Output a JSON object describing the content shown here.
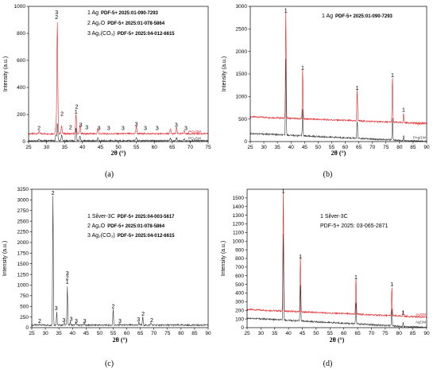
{
  "chart_data": [
    {
      "panel": "a",
      "type": "line",
      "caption": "(a)",
      "xlabel": "2θ (°)",
      "ylabel": "Intensity (a.u.)",
      "xlim": [
        25,
        75
      ],
      "ylim": [
        0,
        1000
      ],
      "xticks": [
        25,
        30,
        35,
        40,
        45,
        50,
        55,
        60,
        65,
        70,
        75
      ],
      "yticks": [
        0,
        200,
        400,
        600,
        800,
        1000
      ],
      "legend_lines": [
        {
          "num": "1",
          "name": "Ag",
          "ref": "PDF-5+ 2025:01-090-7293"
        },
        {
          "num": "2",
          "name": "Ag₂O",
          "ref": "PDF-5+ 2025:01-078-5864"
        },
        {
          "num": "3",
          "name": "Ag₂(CO₃)",
          "ref": "PDF-5+ 2025:04-012-6615"
        }
      ],
      "series": [
        {
          "name": "PO₂/2M",
          "color": "#e8262a",
          "offset": 50,
          "baseline": 8,
          "peaks": [
            [
              27.9,
              16
            ],
            [
              32.6,
              70
            ],
            [
              33.0,
              820
            ],
            [
              34.2,
              60
            ],
            [
              38.2,
              150
            ],
            [
              39.3,
              60
            ],
            [
              44.3,
              40
            ],
            [
              55.0,
              60
            ],
            [
              64.5,
              35
            ],
            [
              66.2,
              45
            ],
            [
              68.3,
              25
            ],
            [
              77.4,
              20
            ]
          ]
        },
        {
          "name": "PO₂/1M",
          "color": "#3a3a3a",
          "offset": 0,
          "baseline": 6,
          "peaks": [
            [
              27.9,
              10
            ],
            [
              32.6,
              40
            ],
            [
              33.0,
              130
            ],
            [
              34.2,
              40
            ],
            [
              38.2,
              100
            ],
            [
              39.3,
              30
            ],
            [
              44.3,
              20
            ],
            [
              55.0,
              25
            ],
            [
              64.5,
              20
            ],
            [
              66.2,
              22
            ],
            [
              68.3,
              15
            ]
          ]
        }
      ],
      "peak_labels": [
        {
          "x": 27.9,
          "y": 85,
          "text": "2"
        },
        {
          "x": 32.8,
          "y": 905,
          "text": "2"
        },
        {
          "x": 32.8,
          "y": 940,
          "text": "3"
        },
        {
          "x": 34.3,
          "y": 190,
          "text": "2"
        },
        {
          "x": 36.7,
          "y": 90,
          "text": "2"
        },
        {
          "x": 38.2,
          "y": 205,
          "text": "1"
        },
        {
          "x": 38.4,
          "y": 245,
          "text": "2"
        },
        {
          "x": 39.5,
          "y": 110,
          "text": "3"
        },
        {
          "x": 41.2,
          "y": 90,
          "text": "3"
        },
        {
          "x": 44.6,
          "y": 85,
          "text": "3"
        },
        {
          "x": 47.3,
          "y": 85,
          "text": "3"
        },
        {
          "x": 51.3,
          "y": 85,
          "text": "3"
        },
        {
          "x": 55.0,
          "y": 115,
          "text": "3"
        },
        {
          "x": 57.5,
          "y": 85,
          "text": "3"
        },
        {
          "x": 60.8,
          "y": 85,
          "text": "3"
        },
        {
          "x": 66.1,
          "y": 110,
          "text": "3"
        },
        {
          "x": 68.8,
          "y": 85,
          "text": "3"
        }
      ],
      "series_label_positions": [
        {
          "x": 69.5,
          "y": 65
        },
        {
          "x": 69.5,
          "y": 15
        }
      ]
    },
    {
      "panel": "b",
      "type": "line",
      "caption": "(b)",
      "xlabel": "2θ (°)",
      "ylabel": "Intensity (a.u.)",
      "xlim": [
        25,
        90
      ],
      "ylim": [
        0,
        3000
      ],
      "xticks": [
        25,
        30,
        35,
        40,
        45,
        50,
        55,
        60,
        65,
        70,
        75,
        80,
        85,
        90
      ],
      "yticks": [
        0,
        500,
        1000,
        1500,
        2000,
        2500,
        3000
      ],
      "legend_lines": [
        {
          "num": "1",
          "name": "Ag",
          "ref": "PDF-5+ 2025:01-090-7293"
        }
      ],
      "series": [
        {
          "name": "PAg/2M",
          "color": "#e8262a",
          "offset": 400,
          "baseline_slope": [
            150,
            0
          ],
          "peaks": [
            [
              38.1,
              2400
            ],
            [
              44.3,
              1100
            ],
            [
              64.4,
              700
            ],
            [
              77.4,
              1000
            ],
            [
              81.5,
              200
            ]
          ]
        },
        {
          "name": "PAg/1M",
          "color": "#3a3a3a",
          "offset": 0,
          "baseline_slope": [
            180,
            0
          ],
          "peaks": [
            [
              38.1,
              1700
            ],
            [
              44.3,
              600
            ],
            [
              64.4,
              400
            ],
            [
              77.4,
              500
            ],
            [
              81.5,
              100
            ]
          ]
        }
      ],
      "peak_labels": [
        {
          "x": 38.1,
          "y": 2870,
          "text": "1"
        },
        {
          "x": 44.3,
          "y": 1600,
          "text": "1"
        },
        {
          "x": 64.4,
          "y": 1150,
          "text": "1"
        },
        {
          "x": 77.4,
          "y": 1430,
          "text": "1"
        },
        {
          "x": 81.5,
          "y": 660,
          "text": "1"
        }
      ],
      "series_label_positions": [
        {
          "x": 85,
          "y": 380
        },
        {
          "x": 85,
          "y": 60
        }
      ]
    },
    {
      "panel": "c",
      "type": "line",
      "caption": "(c)",
      "xlabel": "2θ (°)",
      "ylabel": "Intensity (a.u.)",
      "xlim": [
        25,
        90
      ],
      "ylim": [
        0,
        3250
      ],
      "xticks": [
        25,
        30,
        35,
        40,
        45,
        50,
        55,
        60,
        65,
        70,
        75,
        80,
        85,
        90
      ],
      "yticks": [
        0,
        250,
        500,
        750,
        1000,
        1250,
        1500,
        1750,
        2000,
        2250,
        2500,
        2750,
        3000,
        3250
      ],
      "legend_lines": [
        {
          "num": "1",
          "name": "Silver-3C",
          "ref": "PDF-5+ 2025:04-003-5617"
        },
        {
          "num": "2",
          "name": "Ag₂O",
          "ref": "PDF-5+ 2025:01-078-5864"
        },
        {
          "num": "3",
          "name": "Ag₂(CO₃)",
          "ref": "PDF-5+ 2025:04-012-6615"
        }
      ],
      "series": [
        {
          "name": "",
          "color": "#3a3a3a",
          "offset": 0,
          "baseline": 60,
          "peaks": [
            [
              27.9,
              40
            ],
            [
              32.8,
              3050
            ],
            [
              34.2,
              320
            ],
            [
              37.0,
              60
            ],
            [
              38.1,
              900
            ],
            [
              39.2,
              80
            ],
            [
              41.3,
              60
            ],
            [
              44.3,
              50
            ],
            [
              55.0,
              370
            ],
            [
              57.5,
              30
            ],
            [
              64.5,
              80
            ],
            [
              65.9,
              200
            ],
            [
              68.9,
              60
            ]
          ]
        }
      ],
      "peak_labels": [
        {
          "x": 27.9,
          "y": 110,
          "text": "2"
        },
        {
          "x": 32.8,
          "y": 3120,
          "text": "2"
        },
        {
          "x": 34.0,
          "y": 410,
          "text": "3"
        },
        {
          "x": 36.8,
          "y": 130,
          "text": "3"
        },
        {
          "x": 38.1,
          "y": 1030,
          "text": "1"
        },
        {
          "x": 38.1,
          "y": 1130,
          "text": "2"
        },
        {
          "x": 38.1,
          "y": 1230,
          "text": "3"
        },
        {
          "x": 39.5,
          "y": 160,
          "text": "3"
        },
        {
          "x": 41.4,
          "y": 110,
          "text": "3"
        },
        {
          "x": 44.5,
          "y": 110,
          "text": "3"
        },
        {
          "x": 55.0,
          "y": 460,
          "text": "2"
        },
        {
          "x": 57.5,
          "y": 110,
          "text": "3"
        },
        {
          "x": 64.3,
          "y": 150,
          "text": "3"
        },
        {
          "x": 66.0,
          "y": 280,
          "text": "2"
        },
        {
          "x": 69.2,
          "y": 130,
          "text": "2"
        }
      ],
      "series_label_positions": []
    },
    {
      "panel": "d",
      "type": "line",
      "caption": "(d)",
      "xlabel": "2θ (°)",
      "ylabel": "Intensity (a.u.)",
      "xlim": [
        25,
        90
      ],
      "ylim": [
        0,
        1600
      ],
      "xticks": [
        25,
        30,
        35,
        40,
        45,
        50,
        55,
        60,
        65,
        70,
        75,
        80,
        85,
        90
      ],
      "yticks": [
        0,
        100,
        200,
        300,
        400,
        500,
        600,
        700,
        800,
        900,
        1000,
        1100,
        1200,
        1300,
        1400,
        1500
      ],
      "legend_lines": [
        {
          "num": "1",
          "name": "Silver-3C",
          "ref": ""
        },
        {
          "num": "",
          "name": "PDF-5+ 2025: 03-065-2871",
          "ref": ""
        }
      ],
      "series": [
        {
          "name": "Ag/2M",
          "color": "#e8262a",
          "offset": 120,
          "baseline_slope": [
            90,
            0
          ],
          "peaks": [
            [
              38.1,
              1400
            ],
            [
              44.3,
              640
            ],
            [
              64.4,
              420
            ],
            [
              77.4,
              330
            ],
            [
              81.5,
              60
            ]
          ]
        },
        {
          "name": "Ag/1M",
          "color": "#3a3a3a",
          "offset": 0,
          "baseline_slope": [
            110,
            0
          ],
          "peaks": [
            [
              38.1,
              1000
            ],
            [
              44.3,
              420
            ],
            [
              64.4,
              260
            ],
            [
              77.4,
              200
            ],
            [
              81.5,
              40
            ]
          ]
        }
      ],
      "peak_labels": [
        {
          "x": 38.1,
          "y": 1560,
          "text": "1"
        },
        {
          "x": 44.3,
          "y": 800,
          "text": "1"
        },
        {
          "x": 64.4,
          "y": 560,
          "text": "1"
        },
        {
          "x": 77.4,
          "y": 480,
          "text": "1"
        },
        {
          "x": 81.5,
          "y": 150,
          "text": "1"
        }
      ],
      "series_label_positions": [
        {
          "x": 86,
          "y": 140
        },
        {
          "x": 86,
          "y": 50
        }
      ]
    }
  ]
}
